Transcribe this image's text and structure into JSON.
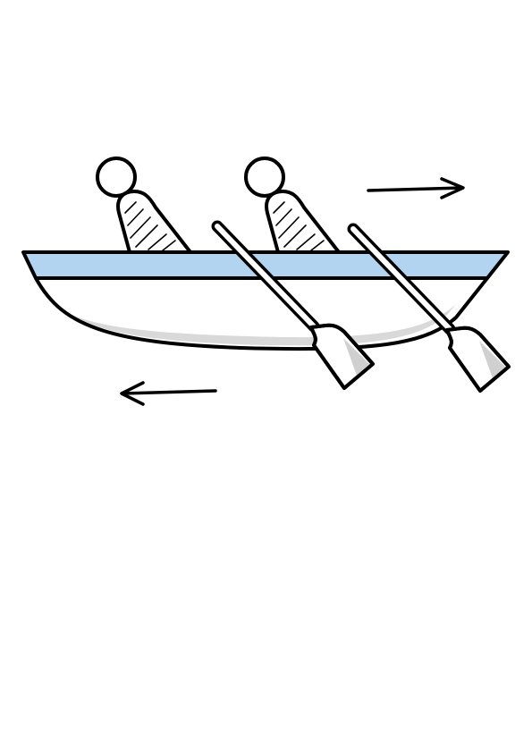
{
  "colors": {
    "background": "#ffffff",
    "outline": "#000000",
    "stripe": "#b3d4f0",
    "hull": "#ffffff",
    "hull_shadow": "#d9d9d9",
    "paddle_blade_shadow": "#d0d0d0"
  },
  "illustration": {
    "icon": "rowing-boat-icon",
    "rowers": [
      "rower-icon",
      "rower-icon"
    ],
    "oars": [
      "oar-icon",
      "oar-icon"
    ],
    "motion": {
      "boat_direction": "right",
      "oar_push_direction": "left"
    }
  }
}
